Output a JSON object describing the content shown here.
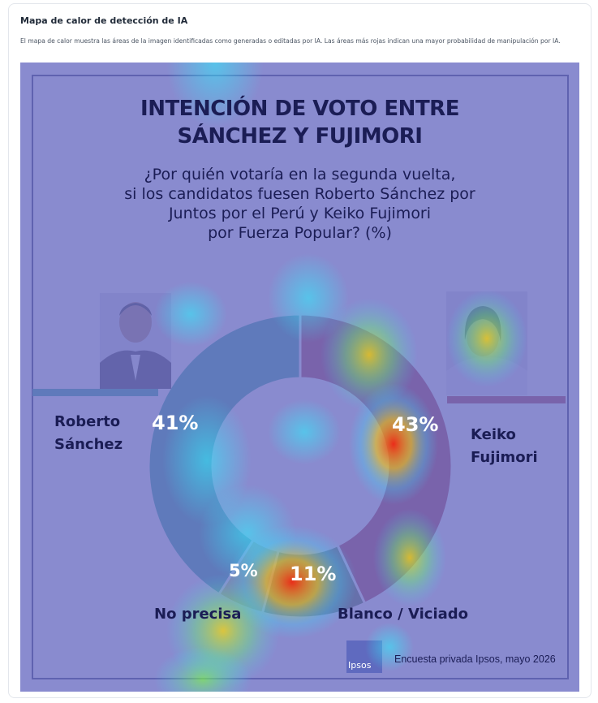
{
  "panel": {
    "title": "Mapa de calor de detección de IA",
    "description": "El mapa de calor muestra las áreas de la imagen identificadas como generadas o editadas por IA. Las áreas más rojas indican una mayor probabilidad de manipulación por IA."
  },
  "image": {
    "title_line1": "INTENCIÓN DE VOTO ENTRE",
    "title_line2": "SÁNCHEZ Y FUJIMORI",
    "question_line1": "¿Por quién votaría en la segunda vuelta,",
    "question_line2": "si los candidatos fuesen Roberto Sánchez por",
    "question_line3": "Juntos por el Perú y Keiko Fujimori",
    "question_line4": "por Fuerza Popular? (%)",
    "left_name_line1": "Roberto",
    "left_name_line2": "Sánchez",
    "right_name_line1": "Keiko",
    "right_name_line2": "Fujimori",
    "label_blank": "Blanco / Viciado",
    "label_unsure": "No precisa",
    "logo_text": "Ipsos",
    "source": "Encuesta privada Ipsos, mayo 2026",
    "colors": {
      "sanchez": "#17a390",
      "fujimori": "#a6223a",
      "blank": "#3e6c3a",
      "unsure": "#c9b65a",
      "overlay": "#6f72c4"
    }
  },
  "chart_data": {
    "type": "pie",
    "title": "INTENCIÓN DE VOTO ENTRE SÁNCHEZ Y FUJIMORI",
    "categories": [
      "Roberto Sánchez",
      "Keiko Fujimori",
      "Blanco / Viciado",
      "No precisa"
    ],
    "values": [
      41,
      43,
      11,
      5
    ],
    "labels": [
      "41%",
      "43%",
      "11%",
      "5%"
    ]
  }
}
